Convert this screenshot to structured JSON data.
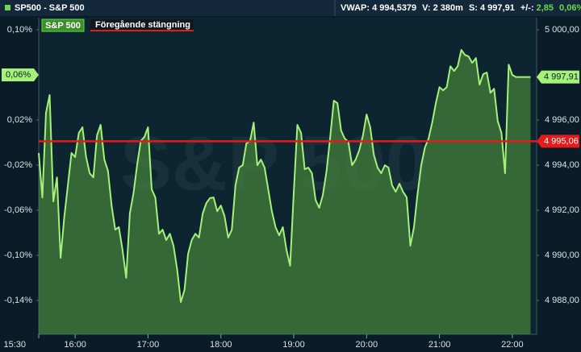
{
  "header": {
    "symbol": "SP500 - S&P 500",
    "stats": [
      "VWAP: 4 994,5379",
      "V: 2 380m",
      "S: 4 997,91",
      "+/-:",
      "2,85",
      "0,06%"
    ]
  },
  "chart_data": {
    "type": "line",
    "watermark": "S&P 500",
    "x": [
      15.5,
      15.55,
      15.6,
      15.65,
      15.7,
      15.75,
      15.8,
      15.85,
      15.9,
      15.95,
      16,
      16.05,
      16.1,
      16.15,
      16.2,
      16.25,
      16.3,
      16.35,
      16.4,
      16.45,
      16.5,
      16.55,
      16.6,
      16.65,
      16.7,
      16.75,
      16.8,
      16.85,
      16.9,
      16.95,
      17,
      17.05,
      17.1,
      17.15,
      17.2,
      17.25,
      17.3,
      17.35,
      17.4,
      17.45,
      17.5,
      17.55,
      17.6,
      17.65,
      17.7,
      17.75,
      17.8,
      17.85,
      17.9,
      17.95,
      18,
      18.05,
      18.1,
      18.15,
      18.2,
      18.25,
      18.3,
      18.35,
      18.4,
      18.45,
      18.5,
      18.55,
      18.6,
      18.65,
      18.7,
      18.75,
      18.8,
      18.85,
      18.9,
      18.95,
      19,
      19.05,
      19.1,
      19.15,
      19.2,
      19.25,
      19.3,
      19.35,
      19.4,
      19.45,
      19.5,
      19.55,
      19.6,
      19.65,
      19.7,
      19.75,
      19.8,
      19.85,
      19.9,
      19.95,
      20,
      20.05,
      20.1,
      20.15,
      20.2,
      20.25,
      20.3,
      20.35,
      20.4,
      20.45,
      20.5,
      20.55,
      20.6,
      20.65,
      20.7,
      20.75,
      20.8,
      20.85,
      20.9,
      20.95,
      21,
      21.05,
      21.1,
      21.15,
      21.2,
      21.25,
      21.3,
      21.35,
      21.4,
      21.45,
      21.5,
      21.55,
      21.6,
      21.65,
      21.7,
      21.75,
      21.8,
      21.85,
      21.9,
      21.95,
      22,
      22.05,
      22.1,
      22.15,
      22.2,
      22.25
    ],
    "series": [
      {
        "name": "S&P 500",
        "color": "#a4f27a",
        "axis": "y2",
        "values": [
          4994.54,
          4992.57,
          4996.32,
          4997.11,
          4992.39,
          4993.46,
          4989.89,
          4991.68,
          4993.11,
          4994.54,
          4994.36,
          4995.43,
          4995.68,
          4994.36,
          4993.64,
          4993.46,
          4995.32,
          4995.79,
          4994.25,
          4993.75,
          4992.21,
          4991.14,
          4991.25,
          4990.25,
          4989.0,
          4991.86,
          4992.75,
          4994.0,
          4995.07,
          4995.25,
          4995.68,
          4992.93,
          4992.57,
          4990.96,
          4991.14,
          4990.68,
          4990.96,
          4990.43,
          4989.36,
          4987.93,
          4988.46,
          4990.07,
          4990.68,
          4990.96,
          4990.79,
          4991.86,
          4992.32,
          4992.54,
          4992.57,
          4991.96,
          4992.21,
          4991.75,
          4990.79,
          4991.14,
          4993.11,
          4993.89,
          4994.0,
          4994.96,
          4995.07,
          4995.89,
          4994.0,
          4994.25,
          4993.89,
          4992.93,
          4991.96,
          4991.25,
          4990.89,
          4991.25,
          4990.25,
          4989.54,
          4992.75,
          4995.79,
          4995.43,
          4993.82,
          4993.89,
          4993.64,
          4992.46,
          4992.11,
          4992.68,
          4993.75,
          4995.25,
          4996.86,
          4996.75,
          4995.54,
          4995.18,
          4995.04,
          4994.0,
          4994.25,
          4994.68,
          4995.32,
          4996.25,
          4995.68,
          4994.46,
          4993.89,
          4993.64,
          4994.0,
          4993.89,
          4993.11,
          4992.82,
          4993.18,
          4992.82,
          4992.57,
          4990.43,
          4991.25,
          4992.75,
          4994.0,
          4994.79,
          4995.18,
          4995.89,
          4996.75,
          4997.46,
          4997.32,
          4997.46,
          4998.39,
          4998.18,
          4998.39,
          4999.11,
          4998.89,
          4998.82,
          4998.54,
          4998.75,
          4997.57,
          4998.04,
          4998.11,
          4997.21,
          4997.39,
          4995.96,
          4995.43,
          4993.64,
          4998.46,
          4998.0,
          4997.91,
          4997.91,
          4997.91,
          4997.91,
          4997.91
        ]
      }
    ],
    "reference_line": {
      "name": "Föregående stängning",
      "value": 4995.06,
      "label": "4 995,06",
      "color": "#e31b1b"
    },
    "last_value": {
      "value": 4997.91,
      "label": "4 997,91"
    },
    "last_change": {
      "value": 0.06,
      "label": "0,06%"
    },
    "xlim": [
      15.5,
      22.3333
    ],
    "xticks": [
      {
        "value": 15.5,
        "label": "15:30"
      },
      {
        "value": 16,
        "label": "16:00"
      },
      {
        "value": 17,
        "label": "17:00"
      },
      {
        "value": 18,
        "label": "18:00"
      },
      {
        "value": 19,
        "label": "19:00"
      },
      {
        "value": 20,
        "label": "20:00"
      },
      {
        "value": 21,
        "label": "21:00"
      },
      {
        "value": 22,
        "label": "22:00"
      }
    ],
    "ylim": [
      -0.17,
      0.1107
    ],
    "yticks": [
      {
        "value": 0.1,
        "label": "0,10%"
      },
      {
        "value": 0.06,
        "label": "0,06%"
      },
      {
        "value": 0.02,
        "label": "0,02%"
      },
      {
        "value": -0.02,
        "label": "-0,02%"
      },
      {
        "value": -0.06,
        "label": "-0,06%"
      },
      {
        "value": -0.1,
        "label": "-0,10%"
      },
      {
        "value": -0.14,
        "label": "-0,14%"
      }
    ],
    "y2lim": [
      4986.5,
      5000.54
    ],
    "y2ticks": [
      {
        "value": 5000,
        "label": "5 000,00"
      },
      {
        "value": 4996,
        "label": "4 996,00"
      },
      {
        "value": 4994,
        "label": "4 994,00"
      },
      {
        "value": 4992,
        "label": "4 992,00"
      },
      {
        "value": 4990,
        "label": "4 990,00"
      },
      {
        "value": 4988,
        "label": "4 988,00"
      }
    ]
  }
}
